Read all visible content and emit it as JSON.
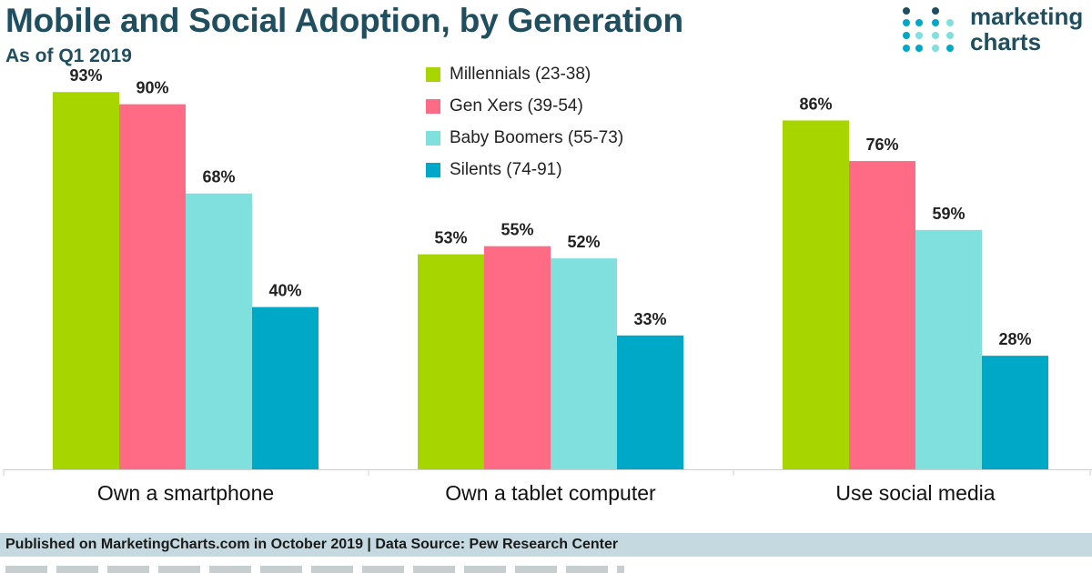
{
  "header": {
    "title": "Mobile and Social Adoption, by Generation",
    "subtitle": "As of Q1 2019"
  },
  "logo": {
    "text": "marketing\ncharts",
    "icon": "dot-grid-logo-icon"
  },
  "footer": {
    "text": "Published on MarketingCharts.com in October 2019 | Data Source: Pew Research Center"
  },
  "colors": {
    "millennials": "#a6d500",
    "genx": "#ff6b85",
    "boomers": "#80e0de",
    "silents": "#00a8c8",
    "axis": "#cfcfcf"
  },
  "chart_data": {
    "type": "bar",
    "title": "Mobile and Social Adoption, by Generation",
    "subtitle": "As of Q1 2019",
    "xlabel": "",
    "ylabel": "",
    "ylim": [
      0,
      100
    ],
    "grid": false,
    "legend_position": "top-center",
    "value_suffix": "%",
    "categories": [
      "Own a smartphone",
      "Own a tablet computer",
      "Use social media"
    ],
    "series": [
      {
        "name": "Millennials (23-38)",
        "key": "millennials",
        "values": [
          93,
          53,
          86
        ]
      },
      {
        "name": "Gen Xers (39-54)",
        "key": "genx",
        "values": [
          90,
          55,
          76
        ]
      },
      {
        "name": "Baby Boomers (55-73)",
        "key": "boomers",
        "values": [
          68,
          52,
          59
        ]
      },
      {
        "name": "Silents (74-91)",
        "key": "silents",
        "values": [
          40,
          33,
          28
        ]
      }
    ]
  }
}
